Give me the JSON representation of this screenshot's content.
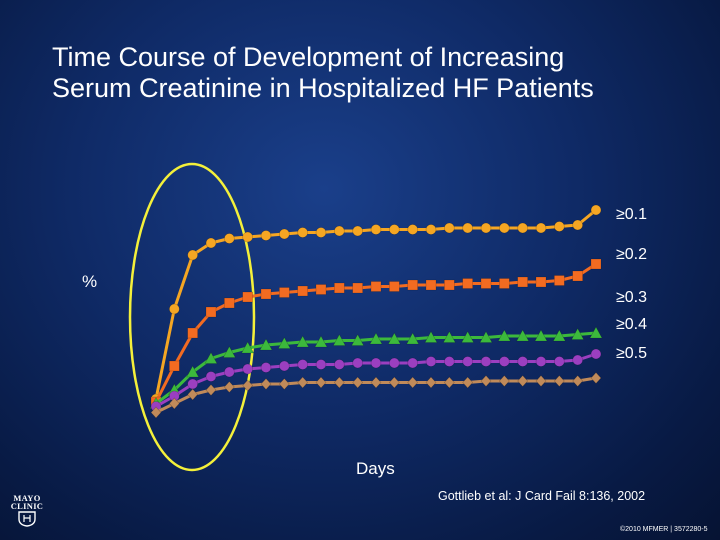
{
  "title": {
    "line1": "Time Course of Development of Increasing",
    "line2": "Serum Creatinine in Hospitalized HF Patients"
  },
  "citation": "Gottlieb et al: J Card Fail 8:136, 2002",
  "copyright": "©2010 MFMER | 3572280-5",
  "logo": {
    "line1": "MAYO",
    "line2": "CLINIC",
    "icon": "mayo-shield-icon"
  },
  "colors": {
    "background": "#0f2a66",
    "highlight_ellipse": "#f4f03a"
  },
  "chart_data": {
    "type": "line",
    "xlabel": "Days",
    "ylabel": "%",
    "grid": false,
    "legend_placement": "right",
    "x": [
      1,
      2,
      3,
      4,
      5,
      6,
      7,
      8,
      9,
      10,
      11,
      12,
      13,
      14,
      15,
      16,
      17,
      18,
      19,
      20,
      21,
      22,
      23,
      24,
      25
    ],
    "series": [
      {
        "name": "≥0.1",
        "color": "#f5a623",
        "marker": "circle",
        "values": [
          3,
          33,
          51,
          55,
          56.5,
          57,
          57.5,
          58,
          58.5,
          58.5,
          59,
          59,
          59.5,
          59.5,
          59.5,
          59.5,
          60,
          60,
          60,
          60,
          60,
          60,
          60.5,
          61,
          66
        ]
      },
      {
        "name": "≥0.2",
        "color": "#f26b21",
        "marker": "square",
        "values": [
          2,
          14,
          25,
          32,
          35,
          37,
          38,
          38.5,
          39,
          39.5,
          40,
          40,
          40.5,
          40.5,
          41,
          41,
          41,
          41.5,
          41.5,
          41.5,
          42,
          42,
          42.5,
          44,
          48
        ]
      },
      {
        "name": "≥0.3",
        "color": "#3cb93c",
        "marker": "triangle",
        "values": [
          1.5,
          6,
          12,
          16.5,
          18.5,
          20,
          21,
          21.5,
          22,
          22,
          22.5,
          22.5,
          23,
          23,
          23,
          23.5,
          23.5,
          23.5,
          23.5,
          24,
          24,
          24,
          24,
          24.5,
          25
        ]
      },
      {
        "name": "≥0.4",
        "color": "#9b3fc0",
        "marker": "circle",
        "values": [
          0.5,
          4,
          8,
          10.5,
          12,
          13,
          13.5,
          14,
          14.5,
          14.5,
          14.5,
          15,
          15,
          15,
          15,
          15.5,
          15.5,
          15.5,
          15.5,
          15.5,
          15.5,
          15.5,
          15.5,
          16,
          18
        ]
      },
      {
        "name": "≥0.5",
        "color": "#c08a5a",
        "marker": "diamond",
        "values": [
          -1.5,
          1.5,
          4.5,
          6,
          7,
          7.5,
          8,
          8,
          8.5,
          8.5,
          8.5,
          8.5,
          8.5,
          8.5,
          8.5,
          8.5,
          8.5,
          8.5,
          9,
          9,
          9,
          9,
          9,
          9,
          10
        ]
      }
    ]
  }
}
